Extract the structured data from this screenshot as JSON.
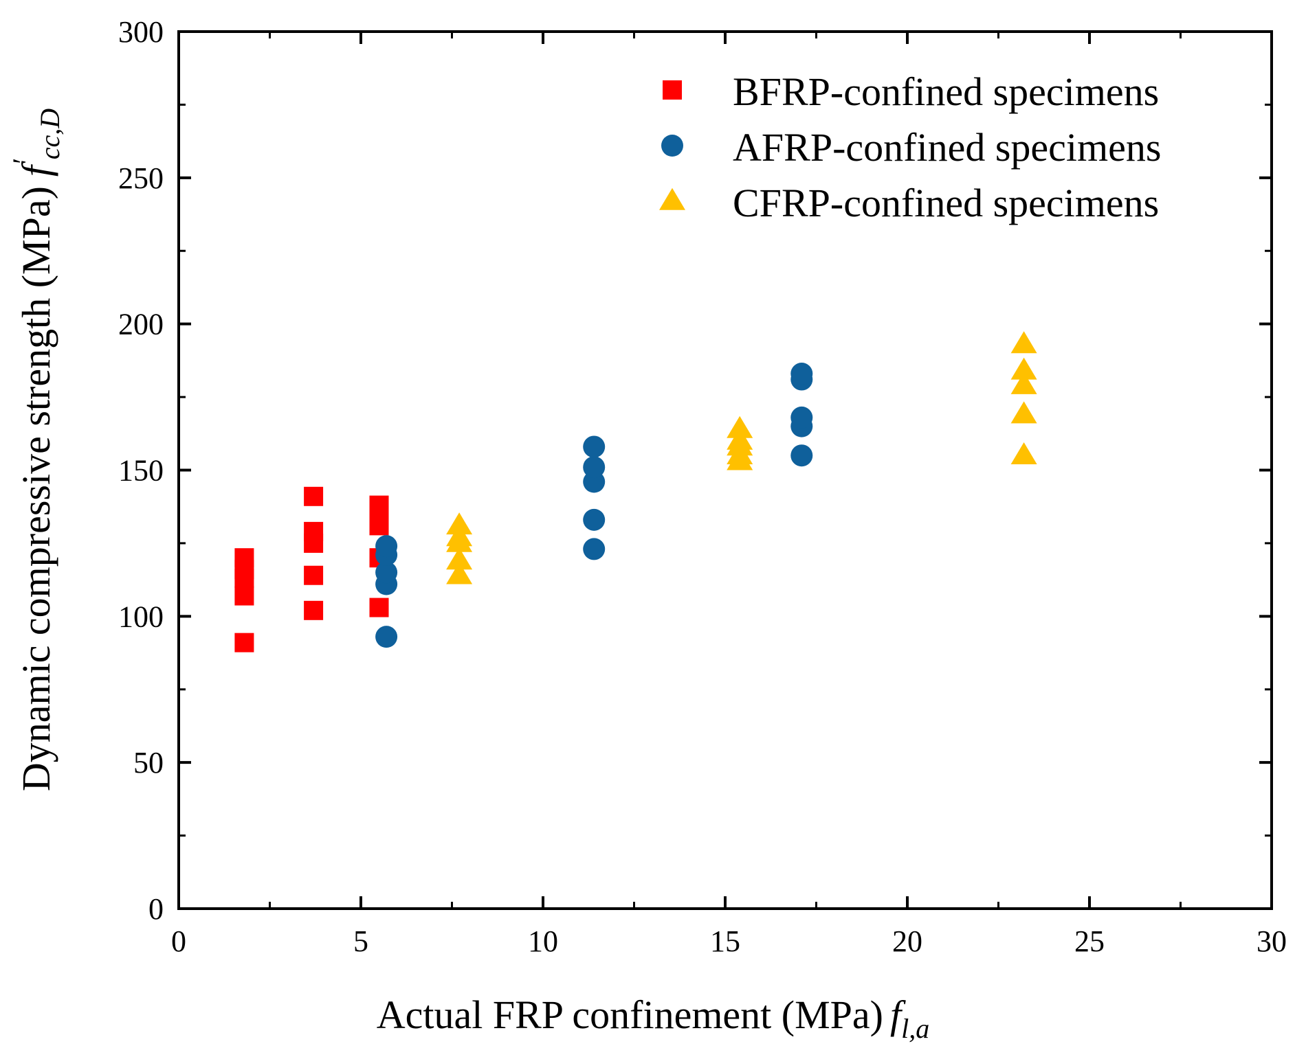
{
  "chart_data": {
    "type": "scatter",
    "title": "",
    "xlabel": "Actual FRP confinement (MPa)",
    "xlabel_symbol": "f",
    "xlabel_subscript": "l,a",
    "ylabel": "Dynamic compressive strength (MPa)",
    "ylabel_symbol": "f",
    "ylabel_prime": "′",
    "ylabel_subscript": "cc,D",
    "xlim": [
      0,
      30
    ],
    "ylim": [
      0,
      300
    ],
    "xticks": [
      0,
      5,
      10,
      15,
      20,
      25,
      30
    ],
    "yticks": [
      0,
      50,
      100,
      150,
      200,
      250,
      300
    ],
    "grid": false,
    "legend_position": "top-right",
    "series": [
      {
        "name": "BFRP-confined specimens",
        "marker": "square",
        "color": "#ff0000",
        "x": [
          1.8,
          1.8,
          1.8,
          1.8,
          1.8,
          3.7,
          3.7,
          3.7,
          3.7,
          3.7,
          5.5,
          5.5,
          5.5,
          5.5,
          5.5
        ],
        "y": [
          91,
          107,
          113,
          116,
          120,
          102,
          114,
          125,
          129,
          141,
          103,
          120,
          131,
          134,
          138
        ]
      },
      {
        "name": "AFRP-confined specimens",
        "marker": "circle",
        "color": "#0f609b",
        "x": [
          5.7,
          5.7,
          5.7,
          5.7,
          5.7,
          11.4,
          11.4,
          11.4,
          11.4,
          11.4,
          17.1,
          17.1,
          17.1,
          17.1,
          17.1
        ],
        "y": [
          93,
          111,
          115,
          121,
          124,
          123,
          133,
          146,
          151,
          158,
          155,
          165,
          168,
          181,
          183
        ]
      },
      {
        "name": "CFRP-confined specimens",
        "marker": "triangle",
        "color": "#ffc000",
        "x": [
          7.7,
          7.7,
          7.7,
          7.7,
          7.7,
          15.4,
          15.4,
          15.4,
          15.4,
          15.4,
          23.2,
          23.2,
          23.2,
          23.2,
          23.2
        ],
        "y": [
          114,
          119,
          125,
          127,
          131,
          153,
          155,
          158,
          160,
          164,
          155,
          169,
          179,
          184,
          193
        ]
      }
    ]
  }
}
